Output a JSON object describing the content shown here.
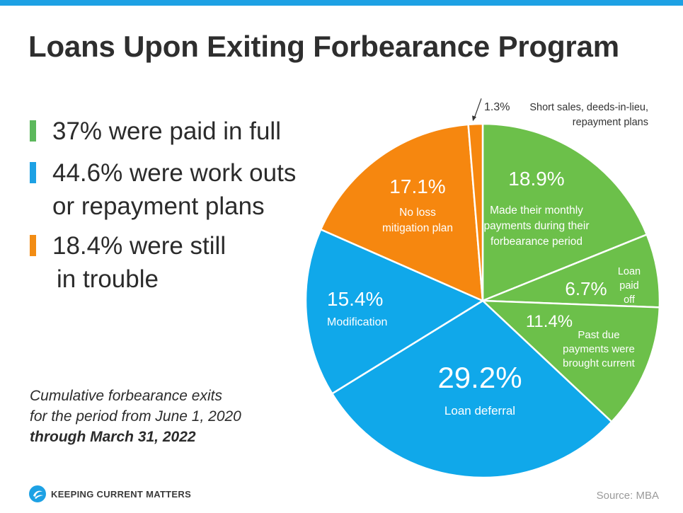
{
  "header": {
    "title": "Loans Upon Exiting Forbearance Program"
  },
  "summary": [
    {
      "lines": [
        "37% were paid in full"
      ],
      "color": "#5cb85c"
    },
    {
      "lines": [
        "44.6% were work outs",
        "or repayment plans"
      ],
      "color": "#1da1e4"
    },
    {
      "lines": [
        "18.4% were still",
        "in trouble"
      ],
      "color": "#f28c14"
    }
  ],
  "note": {
    "line1": "Cumulative forbearance exits",
    "line2": "for the period from June 1, 2020",
    "line3": "through March 31, 2022"
  },
  "footer": {
    "logo_text": "KEEPING CURRENT MATTERS",
    "source": "Source: MBA"
  },
  "chart_data": {
    "type": "pie",
    "title": "Loans Upon Exiting Forbearance Program",
    "slices": [
      {
        "value": 18.9,
        "pct_label": "18.9%",
        "desc": [
          "Made their monthly",
          "payments during their",
          "forbearance period"
        ],
        "color": "#6cc04a"
      },
      {
        "value": 6.7,
        "pct_label": "6.7%",
        "desc": [
          "Loan",
          "paid",
          "off"
        ],
        "color": "#6cc04a"
      },
      {
        "value": 11.4,
        "pct_label": "11.4%",
        "desc": [
          "Past due",
          "payments were",
          "brought current"
        ],
        "color": "#6cc04a"
      },
      {
        "value": 29.2,
        "pct_label": "29.2%",
        "desc": [
          "Loan deferral"
        ],
        "color": "#10a8ea"
      },
      {
        "value": 15.4,
        "pct_label": "15.4%",
        "desc": [
          "Modification"
        ],
        "color": "#10a8ea"
      },
      {
        "value": 17.1,
        "pct_label": "17.1%",
        "desc": [
          "No loss",
          "mitigation plan"
        ],
        "color": "#f6870f"
      },
      {
        "value": 1.3,
        "pct_label": "1.3%",
        "desc": [
          "Short sales, deeds-in-lieu,",
          "repayment plans"
        ],
        "color": "#f6870f"
      }
    ]
  }
}
